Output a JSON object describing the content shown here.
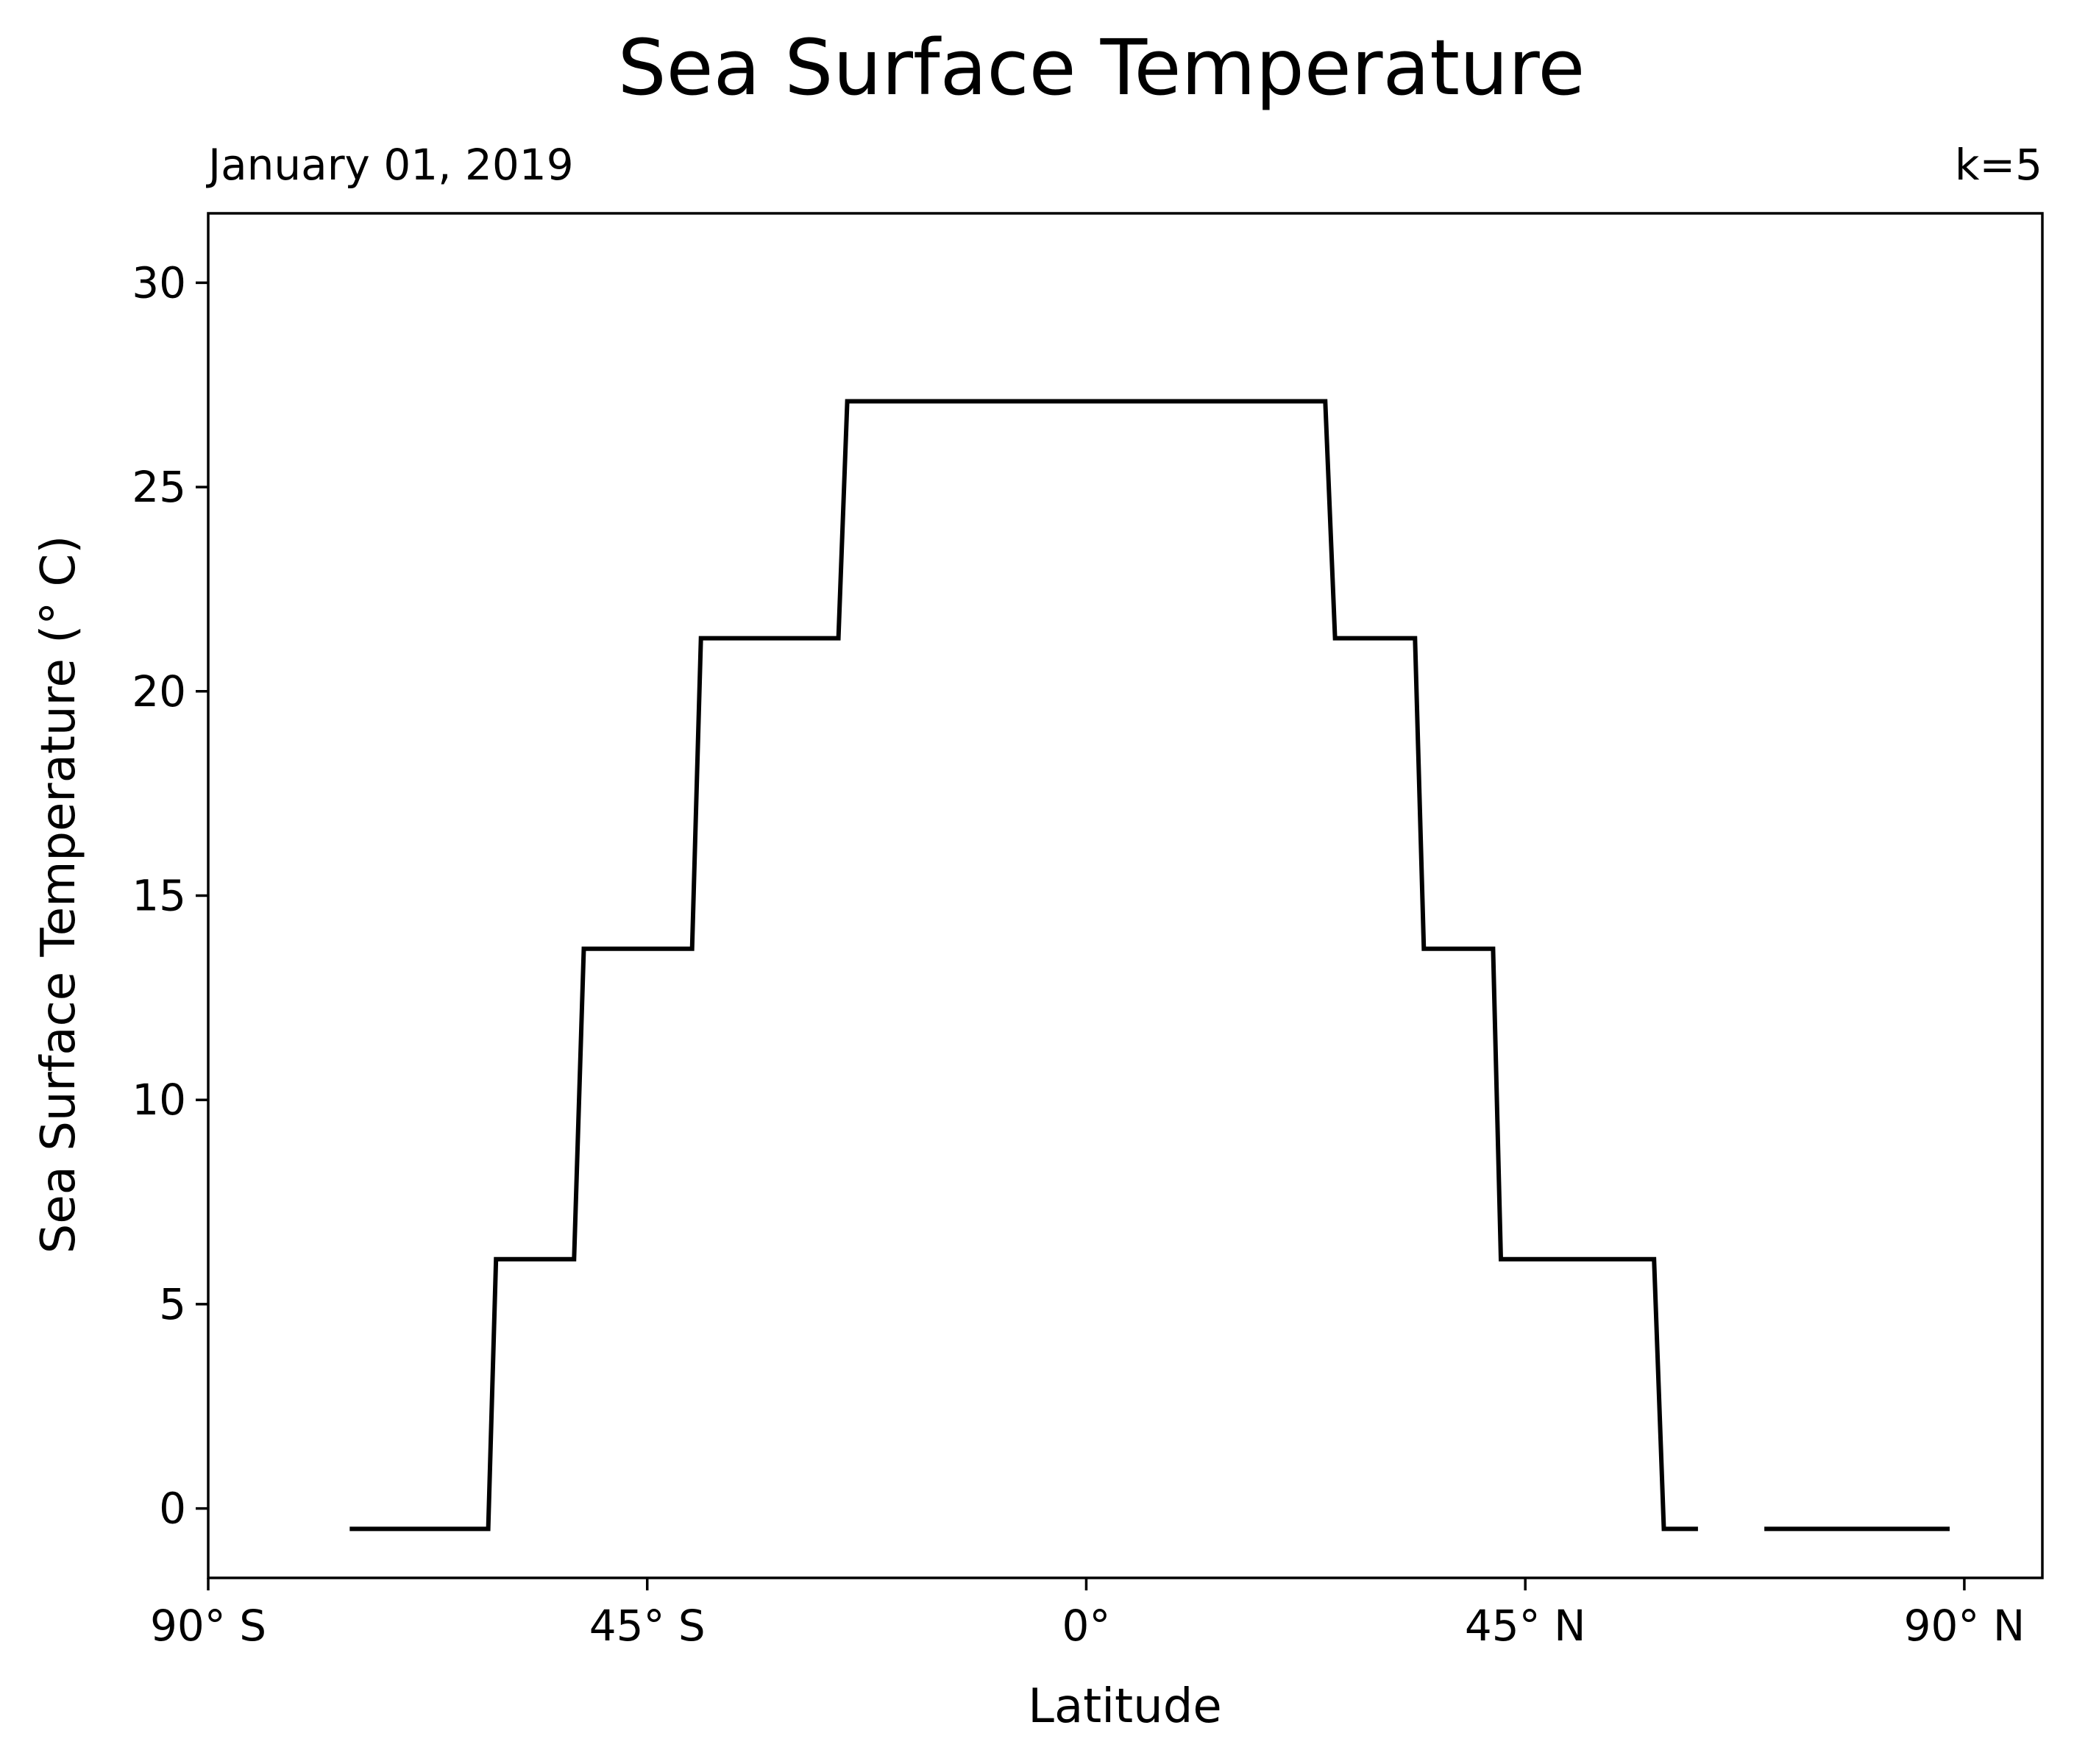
{
  "chart_data": {
    "type": "line",
    "title": "Sea Surface Temperature",
    "subtitle_left": "January 01, 2019",
    "subtitle_right": "k=5",
    "xlabel": "Latitude",
    "ylabel": "Sea Surface Temperature (° C)",
    "xlim": [
      -90,
      98
    ],
    "ylim": [
      -1.7,
      31.7
    ],
    "xticks": [
      {
        "value": -90,
        "label": "90° S"
      },
      {
        "value": -45,
        "label": "45° S"
      },
      {
        "value": 0,
        "label": "0°"
      },
      {
        "value": 45,
        "label": "45° N"
      },
      {
        "value": 90,
        "label": "90° N"
      }
    ],
    "yticks": [
      {
        "value": 0,
        "label": "0"
      },
      {
        "value": 5,
        "label": "5"
      },
      {
        "value": 10,
        "label": "10"
      },
      {
        "value": 15,
        "label": "15"
      },
      {
        "value": 20,
        "label": "20"
      },
      {
        "value": 25,
        "label": "25"
      },
      {
        "value": 30,
        "label": "30"
      }
    ],
    "grid": false,
    "line_color": "#000000",
    "series": [
      {
        "segments": [
          [
            [
              -75.5,
              -0.5
            ],
            [
              -61.3,
              -0.5
            ],
            [
              -60.5,
              6.1
            ],
            [
              -52.5,
              6.1
            ],
            [
              -51.5,
              13.7
            ],
            [
              -40.4,
              13.7
            ],
            [
              -39.5,
              21.3
            ],
            [
              -25.4,
              21.3
            ],
            [
              -24.5,
              27.1
            ],
            [
              24.5,
              27.1
            ],
            [
              25.5,
              21.3
            ],
            [
              33.7,
              21.3
            ],
            [
              34.6,
              13.7
            ],
            [
              41.7,
              13.7
            ],
            [
              42.5,
              6.1
            ],
            [
              58.2,
              6.1
            ],
            [
              59.2,
              -0.5
            ],
            [
              62.7,
              -0.5
            ]
          ],
          [
            [
              69.5,
              -0.5
            ],
            [
              88.5,
              -0.5
            ]
          ]
        ]
      }
    ]
  }
}
